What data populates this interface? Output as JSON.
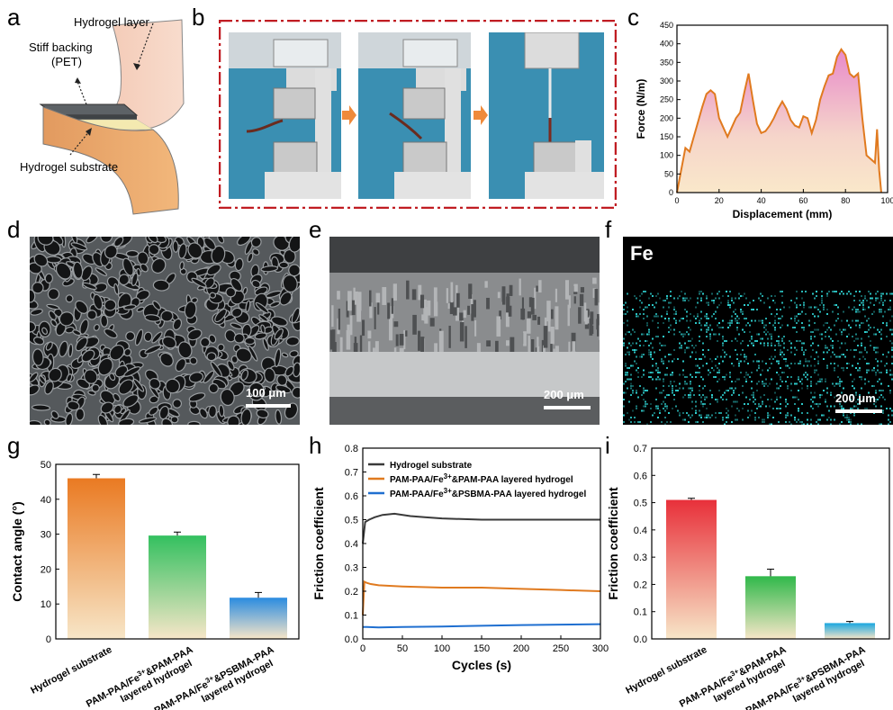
{
  "panels": {
    "a": {
      "label": "a",
      "hydrogel_layer": "Hydrogel layer",
      "stiff_backing_line1": "Stiff backing",
      "stiff_backing_line2": "(PET)",
      "hydrogel_substrate": "Hydrogel substrate"
    },
    "b": {
      "label": "b"
    },
    "c": {
      "label": "c"
    },
    "d": {
      "label": "d",
      "scale": "100 μm"
    },
    "e": {
      "label": "e",
      "scale": "200 μm"
    },
    "f": {
      "label": "f",
      "element": "Fe",
      "scale": "200 μm"
    },
    "g": {
      "label": "g"
    },
    "h": {
      "label": "h"
    },
    "i": {
      "label": "i"
    }
  },
  "chart_data": [
    {
      "id": "c",
      "type": "area",
      "xlabel": "Displacement (mm)",
      "ylabel": "Force (N/m)",
      "xlim": [
        0,
        100
      ],
      "ylim": [
        0,
        450
      ],
      "xticks": [
        0,
        20,
        40,
        60,
        80,
        100
      ],
      "yticks": [
        0,
        50,
        100,
        150,
        200,
        250,
        300,
        350,
        400,
        450
      ],
      "color": "#e07a1f",
      "x": [
        0,
        2,
        4,
        6,
        8,
        10,
        12,
        14,
        16,
        18,
        20,
        22,
        24,
        26,
        28,
        30,
        32,
        34,
        36,
        38,
        40,
        42,
        44,
        46,
        48,
        50,
        52,
        54,
        56,
        58,
        60,
        62,
        64,
        66,
        68,
        70,
        72,
        74,
        76,
        78,
        80,
        82,
        84,
        86,
        88,
        90,
        92,
        94,
        95,
        96,
        97
      ],
      "y": [
        0,
        60,
        120,
        110,
        150,
        190,
        230,
        265,
        275,
        265,
        200,
        175,
        150,
        175,
        200,
        215,
        270,
        320,
        250,
        185,
        160,
        165,
        180,
        200,
        225,
        245,
        225,
        195,
        180,
        175,
        205,
        200,
        160,
        195,
        250,
        285,
        315,
        320,
        365,
        385,
        370,
        320,
        310,
        320,
        200,
        100,
        90,
        80,
        170,
        60,
        0
      ]
    },
    {
      "id": "g",
      "type": "bar",
      "ylabel": "Contact angle (°)",
      "ylim": [
        0,
        50
      ],
      "yticks": [
        0,
        10,
        20,
        30,
        40,
        50
      ],
      "categories": [
        "Hydrogel substrate",
        "PAM-PAA/Fe3+&PAM-PAA layered hydrogel",
        "PAM-PAA/Fe3+&PSBMA-PAA layered hydrogel"
      ],
      "values": [
        46.0,
        29.6,
        11.8
      ],
      "errors": [
        1.1,
        1.0,
        1.5
      ],
      "colors": [
        "#ea7a22",
        "#33c05f",
        "#2a8be0"
      ]
    },
    {
      "id": "h",
      "type": "line",
      "xlabel": "Cycles (s)",
      "ylabel": "Friction coefficient",
      "xlim": [
        0,
        300
      ],
      "ylim": [
        0,
        0.8
      ],
      "xticks": [
        0,
        50,
        100,
        150,
        200,
        250,
        300
      ],
      "yticks": [
        0.0,
        0.1,
        0.2,
        0.3,
        0.4,
        0.5,
        0.6,
        0.7,
        0.8
      ],
      "series": [
        {
          "name": "Hydrogel substrate",
          "color": "#3a3a3a",
          "x": [
            0,
            3,
            8,
            15,
            25,
            40,
            60,
            80,
            100,
            150,
            200,
            250,
            300
          ],
          "y": [
            0.4,
            0.49,
            0.5,
            0.51,
            0.52,
            0.525,
            0.515,
            0.51,
            0.505,
            0.5,
            0.5,
            0.5,
            0.5
          ]
        },
        {
          "name": "PAM-PAA/Fe3+&PAM-PAA layered hydrogel",
          "color": "#e07a1f",
          "x": [
            0,
            2,
            5,
            10,
            20,
            50,
            100,
            150,
            200,
            250,
            300
          ],
          "y": [
            0.1,
            0.24,
            0.235,
            0.23,
            0.225,
            0.22,
            0.215,
            0.215,
            0.21,
            0.205,
            0.2
          ]
        },
        {
          "name": "PAM-PAA/Fe3+&PSBMA-PAA layered hydrogel",
          "color": "#1f6fd0",
          "x": [
            0,
            5,
            20,
            50,
            100,
            150,
            200,
            250,
            300
          ],
          "y": [
            0.05,
            0.05,
            0.048,
            0.05,
            0.052,
            0.055,
            0.058,
            0.06,
            0.062
          ]
        }
      ]
    },
    {
      "id": "i",
      "type": "bar",
      "ylabel": "Friction coefficient",
      "ylim": [
        0,
        0.7
      ],
      "yticks": [
        0.0,
        0.1,
        0.2,
        0.3,
        0.4,
        0.5,
        0.6,
        0.7
      ],
      "categories": [
        "Hydrogel substrate",
        "PAM-PAA/Fe3+&PAM-PAA layered hydrogel",
        "PAM-PAA/Fe3+&PSBMA-PAA layered hydrogel"
      ],
      "values": [
        0.51,
        0.23,
        0.058
      ],
      "errors": [
        0.006,
        0.026,
        0.006
      ],
      "colors": [
        "#e8303a",
        "#30b84a",
        "#1aa7e0"
      ]
    }
  ]
}
